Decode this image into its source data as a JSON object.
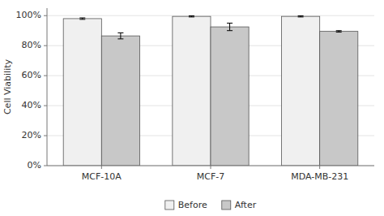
{
  "chart_data": {
    "type": "bar",
    "categories": [
      "MCF-10A",
      "MCF-7",
      "MDA-MB-231"
    ],
    "series": [
      {
        "name": "Before",
        "color": "#f0f0f0",
        "values": [
          0.98,
          0.995,
          0.995
        ],
        "errors": [
          0.005,
          0.004,
          0.004
        ]
      },
      {
        "name": "After",
        "color": "#c8c8c8",
        "values": [
          0.865,
          0.925,
          0.895
        ],
        "errors": [
          0.02,
          0.025,
          0.005
        ]
      }
    ],
    "ylabel": "Cell Viability",
    "ylim": [
      0,
      1.05
    ],
    "yticks": [
      {
        "value": 0.0,
        "label": "0%"
      },
      {
        "value": 0.2,
        "label": "20%"
      },
      {
        "value": 0.4,
        "label": "40%"
      },
      {
        "value": 0.6,
        "label": "60%"
      },
      {
        "value": 0.8,
        "label": "80%"
      },
      {
        "value": 1.0,
        "label": "100%"
      }
    ],
    "grid": true,
    "legend": "bottom"
  }
}
